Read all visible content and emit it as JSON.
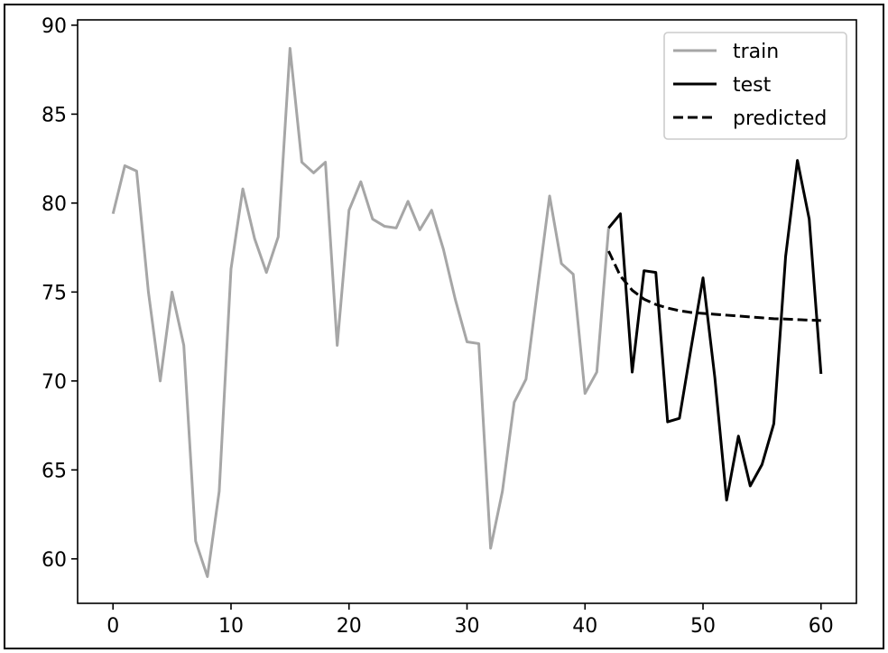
{
  "chart_data": {
    "type": "line",
    "title": "",
    "xlabel": "",
    "ylabel": "",
    "xlim": [
      -3,
      63
    ],
    "ylim": [
      57.5,
      90.3
    ],
    "xticks": [
      0,
      10,
      20,
      30,
      40,
      50,
      60
    ],
    "yticks": [
      60,
      65,
      70,
      75,
      80,
      85,
      90
    ],
    "grid": false,
    "legend_position": "top-right",
    "series": [
      {
        "name": "train",
        "color": "#a6a6a6",
        "style": "solid",
        "x": [
          0,
          1,
          2,
          3,
          4,
          5,
          6,
          7,
          8,
          9,
          10,
          11,
          12,
          13,
          14,
          15,
          16,
          17,
          18,
          19,
          20,
          21,
          22,
          23,
          24,
          25,
          26,
          27,
          28,
          29,
          30,
          31,
          32,
          33,
          34,
          35,
          36,
          37,
          38,
          39,
          40,
          41,
          42
        ],
        "y": [
          79.4,
          82.1,
          81.8,
          75.0,
          70.0,
          75.0,
          72.0,
          61.0,
          59.0,
          63.8,
          76.3,
          80.8,
          78.0,
          76.1,
          78.1,
          88.7,
          82.3,
          81.7,
          82.3,
          72.0,
          79.6,
          81.2,
          79.1,
          78.7,
          78.6,
          80.1,
          78.5,
          79.6,
          77.4,
          74.6,
          72.2,
          72.1,
          60.6,
          63.8,
          68.8,
          70.1,
          75.3,
          80.4,
          76.6,
          76.0,
          69.3,
          70.5,
          78.6
        ]
      },
      {
        "name": "test",
        "color": "#000000",
        "style": "solid",
        "x": [
          42,
          43,
          44,
          45,
          46,
          47,
          48,
          49,
          50,
          51,
          52,
          53,
          54,
          55,
          56,
          57,
          58,
          59,
          60
        ],
        "y": [
          78.6,
          79.4,
          70.5,
          76.2,
          76.1,
          67.7,
          67.9,
          71.9,
          75.8,
          70.2,
          63.3,
          66.9,
          64.1,
          65.3,
          67.6,
          77.0,
          82.4,
          79.1,
          70.4
        ]
      },
      {
        "name": "predicted",
        "color": "#000000",
        "style": "dashed",
        "x": [
          42,
          43,
          44,
          45,
          46,
          47,
          48,
          49,
          50,
          51,
          52,
          53,
          54,
          55,
          56,
          57,
          58,
          59,
          60
        ],
        "y": [
          77.3,
          75.9,
          75.1,
          74.6,
          74.3,
          74.1,
          73.95,
          73.85,
          73.8,
          73.75,
          73.7,
          73.65,
          73.6,
          73.55,
          73.5,
          73.48,
          73.45,
          73.42,
          73.4
        ]
      }
    ]
  }
}
